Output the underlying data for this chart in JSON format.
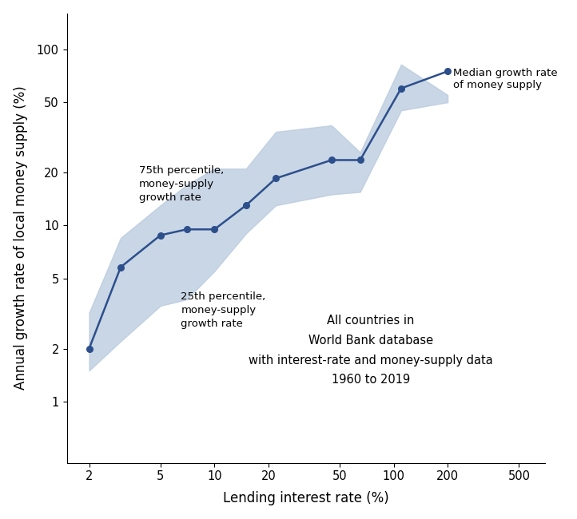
{
  "x": [
    2,
    3,
    5,
    7,
    10,
    15,
    22,
    45,
    65,
    110,
    200
  ],
  "median": [
    2.0,
    5.8,
    8.8,
    9.5,
    9.5,
    13.0,
    18.5,
    23.5,
    23.5,
    60.0,
    75.0
  ],
  "p25": [
    1.5,
    2.2,
    3.5,
    3.8,
    5.5,
    9.0,
    13.0,
    15.0,
    15.5,
    45.0,
    50.0
  ],
  "p75": [
    3.2,
    8.5,
    13.0,
    17.0,
    21.0,
    21.0,
    34.0,
    37.0,
    26.0,
    82.0,
    55.0
  ],
  "line_color": "#2c4f8c",
  "fill_color": "#b8c9dd",
  "fill_alpha": 0.75,
  "xlabel": "Lending interest rate (%)",
  "ylabel": "Annual growth rate of local money supply (%)",
  "annotation_median": "Median growth rate\nof money supply",
  "annotation_75": "75th percentile,\nmoney-supply\ngrowth rate",
  "annotation_25": "25th percentile,\nmoney-supply\ngrowth rate",
  "annotation_text": "All countries in\nWorld Bank database\nwith interest-rate and money-supply data\n1960 to 2019",
  "xticks": [
    2,
    5,
    10,
    20,
    50,
    100,
    200,
    500
  ],
  "yticks": [
    1,
    2,
    5,
    10,
    20,
    50,
    100
  ],
  "xlim": [
    1.5,
    700
  ],
  "ylim": [
    0.45,
    160
  ],
  "figsize": [
    7.22,
    6.5
  ],
  "dpi": 100
}
